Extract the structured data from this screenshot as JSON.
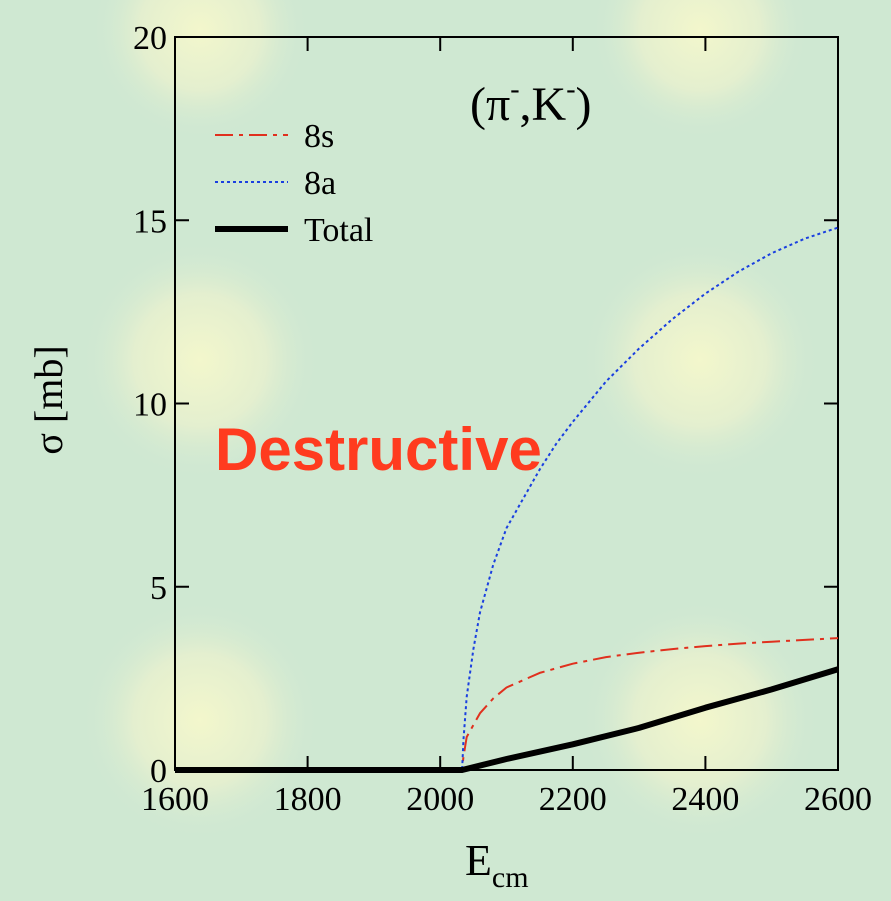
{
  "chart_data": {
    "type": "line",
    "xlabel": "E",
    "xlabel_sub": "cm",
    "ylabel": "σ [mb]",
    "xlim": [
      1600,
      2600
    ],
    "ylim": [
      0,
      20
    ],
    "xticks": [
      1600,
      1800,
      2000,
      2200,
      2400,
      2600
    ],
    "yticks": [
      0,
      5,
      10,
      15,
      20
    ],
    "reaction": {
      "open": "(π",
      "sup1": "-",
      "mid": ",K",
      "sup2": "-",
      "close": ")"
    },
    "annotation": "Destructive",
    "legend_position": "top-left",
    "grid": false,
    "series": [
      {
        "name": "8s",
        "color": "#e0301e",
        "style": "dashdot",
        "x": [
          1600,
          1800,
          2000,
          2033,
          2035,
          2040,
          2060,
          2080,
          2100,
          2150,
          2200,
          2250,
          2300,
          2350,
          2400,
          2450,
          2500,
          2550,
          2600
        ],
        "y": [
          0,
          0,
          0,
          0,
          0.35,
          0.9,
          1.55,
          1.95,
          2.25,
          2.65,
          2.9,
          3.08,
          3.2,
          3.3,
          3.38,
          3.45,
          3.5,
          3.55,
          3.6
        ]
      },
      {
        "name": "8a",
        "color": "#1a3fe0",
        "style": "dotted",
        "x": [
          1600,
          1800,
          2000,
          2033,
          2035,
          2040,
          2050,
          2060,
          2080,
          2100,
          2125,
          2150,
          2175,
          2200,
          2250,
          2300,
          2350,
          2400,
          2450,
          2500,
          2550,
          2600
        ],
        "y": [
          0,
          0,
          0,
          0,
          0.8,
          2.0,
          3.3,
          4.3,
          5.6,
          6.6,
          7.4,
          8.2,
          8.9,
          9.5,
          10.6,
          11.5,
          12.3,
          13.0,
          13.6,
          14.1,
          14.5,
          14.8
        ]
      },
      {
        "name": "Total",
        "color": "#000000",
        "style": "solid",
        "x": [
          1600,
          1800,
          2000,
          2033,
          2100,
          2200,
          2300,
          2400,
          2500,
          2600
        ],
        "y": [
          0,
          0,
          0,
          0,
          0.3,
          0.7,
          1.15,
          1.7,
          2.2,
          2.75
        ]
      }
    ]
  }
}
